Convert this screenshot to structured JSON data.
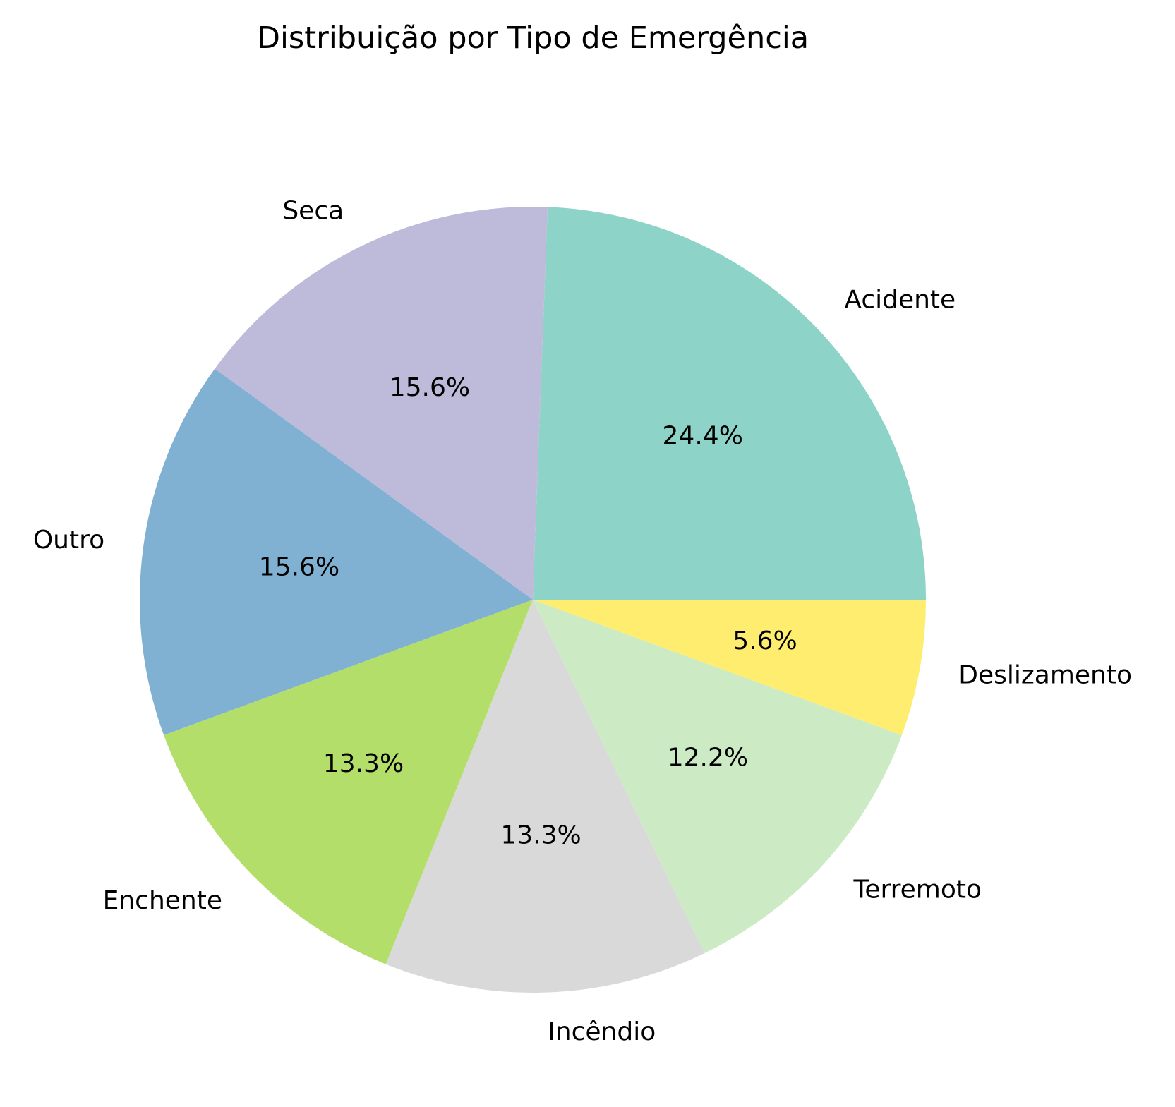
{
  "chart_data": {
    "type": "pie",
    "title": "Distribuição por Tipo de Emergência",
    "start_angle_deg": 0,
    "direction": "counterclockwise",
    "slices": [
      {
        "label": "Acidente",
        "value": 24.4,
        "pct_label": "24.4%",
        "color": "#8dd3c7"
      },
      {
        "label": "Seca",
        "value": 15.6,
        "pct_label": "15.6%",
        "color": "#bebada"
      },
      {
        "label": "Outro",
        "value": 15.6,
        "pct_label": "15.6%",
        "color": "#80b1d3"
      },
      {
        "label": "Enchente",
        "value": 13.3,
        "pct_label": "13.3%",
        "color": "#b3de69"
      },
      {
        "label": "Incêndio",
        "value": 13.3,
        "pct_label": "13.3%",
        "color": "#d9d9d9"
      },
      {
        "label": "Terremoto",
        "value": 12.2,
        "pct_label": "12.2%",
        "color": "#ccebc5"
      },
      {
        "label": "Deslizamento",
        "value": 5.6,
        "pct_label": "5.6%",
        "color": "#ffed6f"
      }
    ]
  }
}
